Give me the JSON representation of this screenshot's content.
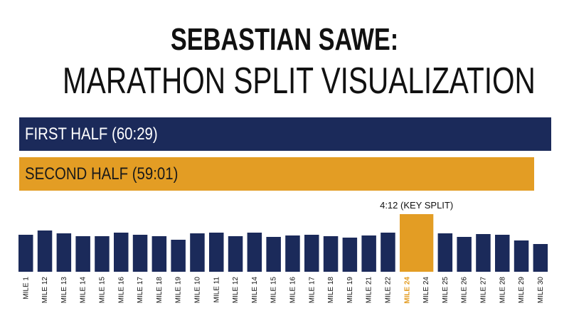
{
  "title": {
    "line1": "SEBASTIAN SAWE:",
    "line2": "MARATHON SPLIT VISUALIZATION"
  },
  "halves": {
    "first_label": "FIRST HALF (60:29)",
    "second_label": "SECOND HALF (59:01)"
  },
  "colors": {
    "navy": "#1b2a5a",
    "orange": "#e39d24",
    "key_label_orange": "#e39d24",
    "text_dark": "#111111"
  },
  "chart_data": {
    "type": "bar",
    "title": "SEBASTIAN SAWE: MARATHON SPLIT VISUALIZATION",
    "halves": [
      {
        "name": "FIRST HALF",
        "value": "60:29"
      },
      {
        "name": "SECOND HALF",
        "value": "59:01"
      }
    ],
    "categories": [
      "MILE 1",
      "MILE 12",
      "MILE 13",
      "MILE 14",
      "MILE 15",
      "MILE 16",
      "MILE 17",
      "MILE 18",
      "MILE 19",
      "MILE 10",
      "MILE 11",
      "MILE 12",
      "MILE 14",
      "MILE 15",
      "MILE 16",
      "MILE 17",
      "MILE 18",
      "MILE 19",
      "MILE 21",
      "MILE 22",
      "MILE 24",
      "MILE 24",
      "MILE 25",
      "MILE 26",
      "MILE 27",
      "MILE 28",
      "MILE 29",
      "MILE 30"
    ],
    "values": [
      52,
      58,
      54,
      50,
      50,
      55,
      52,
      50,
      45,
      54,
      55,
      50,
      55,
      49,
      51,
      52,
      50,
      48,
      51,
      55,
      81,
      0,
      54,
      49,
      53,
      52,
      44,
      39
    ],
    "highlight_index": 20,
    "annotation": "4:12 (KEY SPLIT)",
    "value_units": "relative bar height (0-100)",
    "ylim": [
      0,
      100
    ],
    "grid": false
  }
}
